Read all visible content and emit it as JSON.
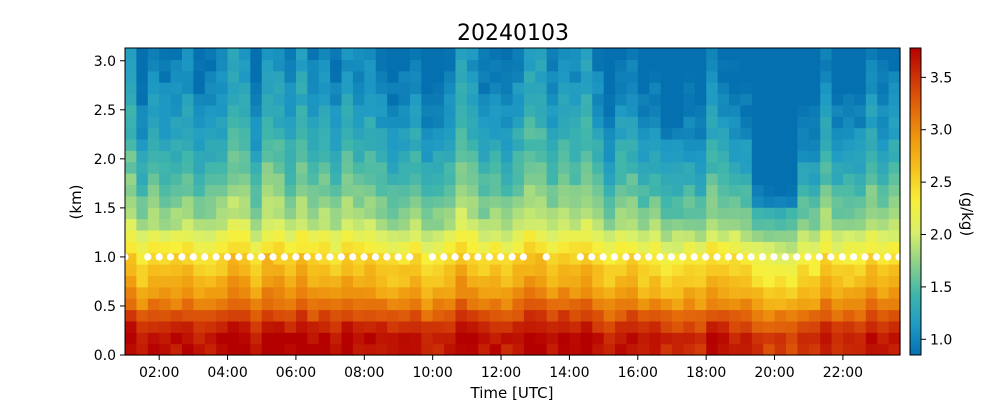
{
  "chart_data": {
    "type": "heatmap",
    "title": "20240103",
    "xlabel": "Time [UTC]",
    "ylabel": "(km)",
    "colorbar_label": "(g/kg)",
    "x_start_hour": 1.0,
    "x_end_hour": 23.67,
    "xlim_hours": [
      1.0,
      23.67
    ],
    "ylim": [
      0.0,
      3.13
    ],
    "x_ticks": [
      "02:00",
      "04:00",
      "06:00",
      "08:00",
      "10:00",
      "12:00",
      "14:00",
      "16:00",
      "18:00",
      "20:00",
      "22:00"
    ],
    "x_tick_hours": [
      2,
      4,
      6,
      8,
      10,
      12,
      14,
      16,
      18,
      20,
      22
    ],
    "y_ticks": [
      "0.0",
      "0.5",
      "1.0",
      "1.5",
      "2.0",
      "2.5",
      "3.0"
    ],
    "y_tick_values": [
      0.0,
      0.5,
      1.0,
      1.5,
      2.0,
      2.5,
      3.0
    ],
    "colorbar_ticks": [
      "1.0",
      "1.5",
      "2.0",
      "2.5",
      "3.0",
      "3.5"
    ],
    "colorbar_tick_values": [
      1.0,
      1.5,
      2.0,
      2.5,
      3.0,
      3.5
    ],
    "vmin": 0.85,
    "vmax": 3.78,
    "colormap": [
      "#0570b0",
      "#1f9bc4",
      "#41b6ab",
      "#8fd18a",
      "#d9f06a",
      "#f7f03a",
      "#f6c41e",
      "#ef9a0f",
      "#e36a0a",
      "#cf3507",
      "#b50000"
    ],
    "grid": false,
    "marker_height_km": 1.0,
    "marker_color": "#ffffff",
    "surface_profile": [
      3.7,
      3.72,
      3.55,
      3.35,
      3.1,
      2.9,
      2.75,
      2.62,
      2.5,
      2.3,
      2.1,
      1.9,
      1.78,
      1.7,
      1.6,
      1.52,
      1.45,
      1.38,
      1.32,
      1.26,
      1.2,
      1.15,
      1.1,
      1.06,
      1.02,
      0.98,
      0.95
    ],
    "cloud_gaps_hours": [
      1.4,
      9.6,
      13.9
    ]
  }
}
